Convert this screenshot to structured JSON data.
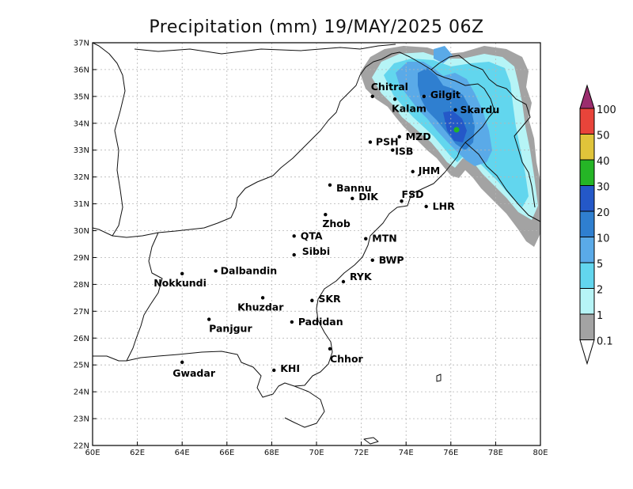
{
  "title": "Precipitation (mm) 19/MAY/2025 06Z",
  "x_ticks": [
    "60E",
    "62E",
    "64E",
    "66E",
    "68E",
    "70E",
    "72E",
    "74E",
    "76E",
    "78E",
    "80E"
  ],
  "y_ticks": [
    "37N",
    "36N",
    "35N",
    "34N",
    "33N",
    "32N",
    "31N",
    "30N",
    "29N",
    "28N",
    "27N",
    "26N",
    "25N",
    "24N",
    "23N",
    "22N"
  ],
  "legend_labels": [
    "100",
    "50",
    "40",
    "30",
    "20",
    "10",
    "5",
    "2",
    "1",
    "0.1"
  ],
  "legend_colors": [
    "#9b2d6e",
    "#e8443a",
    "#e0c43a",
    "#25b526",
    "#2458c8",
    "#2f7fd0",
    "#5aaae8",
    "#62d6ee",
    "#b6f4f6",
    "#a3a3a3"
  ],
  "cities": [
    {
      "name": "Chitral",
      "lon": 72.5,
      "lat": 35.0
    },
    {
      "name": "Gilgit",
      "lon": 74.8,
      "lat": 35.0
    },
    {
      "name": "Kalam",
      "lon": 73.5,
      "lat": 34.9
    },
    {
      "name": "Skardu",
      "lon": 76.2,
      "lat": 34.5
    },
    {
      "name": "MZD",
      "lon": 73.7,
      "lat": 33.5
    },
    {
      "name": "PSH",
      "lon": 72.4,
      "lat": 33.3
    },
    {
      "name": "ISB",
      "lon": 73.4,
      "lat": 33.0
    },
    {
      "name": "JHM",
      "lon": 74.3,
      "lat": 32.2
    },
    {
      "name": "Bannu",
      "lon": 70.6,
      "lat": 31.7
    },
    {
      "name": "DIK",
      "lon": 71.6,
      "lat": 31.2
    },
    {
      "name": "FSD",
      "lon": 73.8,
      "lat": 31.1
    },
    {
      "name": "LHR",
      "lon": 74.9,
      "lat": 30.9
    },
    {
      "name": "Zhob",
      "lon": 70.4,
      "lat": 30.6
    },
    {
      "name": "QTA",
      "lon": 69.0,
      "lat": 29.8
    },
    {
      "name": "MTN",
      "lon": 72.2,
      "lat": 29.7
    },
    {
      "name": "Sibbi",
      "lon": 69.0,
      "lat": 29.1
    },
    {
      "name": "BWP",
      "lon": 72.5,
      "lat": 28.9
    },
    {
      "name": "Dalbandin",
      "lon": 65.5,
      "lat": 28.5
    },
    {
      "name": "Nokkundi",
      "lon": 64.0,
      "lat": 28.4
    },
    {
      "name": "RYK",
      "lon": 71.2,
      "lat": 28.1
    },
    {
      "name": "SKR",
      "lon": 69.8,
      "lat": 27.4
    },
    {
      "name": "Khuzdar",
      "lon": 67.6,
      "lat": 27.5
    },
    {
      "name": "Padidan",
      "lon": 68.9,
      "lat": 26.6
    },
    {
      "name": "Panjgur",
      "lon": 65.2,
      "lat": 26.7
    },
    {
      "name": "Chhor",
      "lon": 70.6,
      "lat": 25.6
    },
    {
      "name": "Gwadar",
      "lon": 64.0,
      "lat": 25.1
    },
    {
      "name": "KHI",
      "lon": 68.1,
      "lat": 24.8
    }
  ]
}
